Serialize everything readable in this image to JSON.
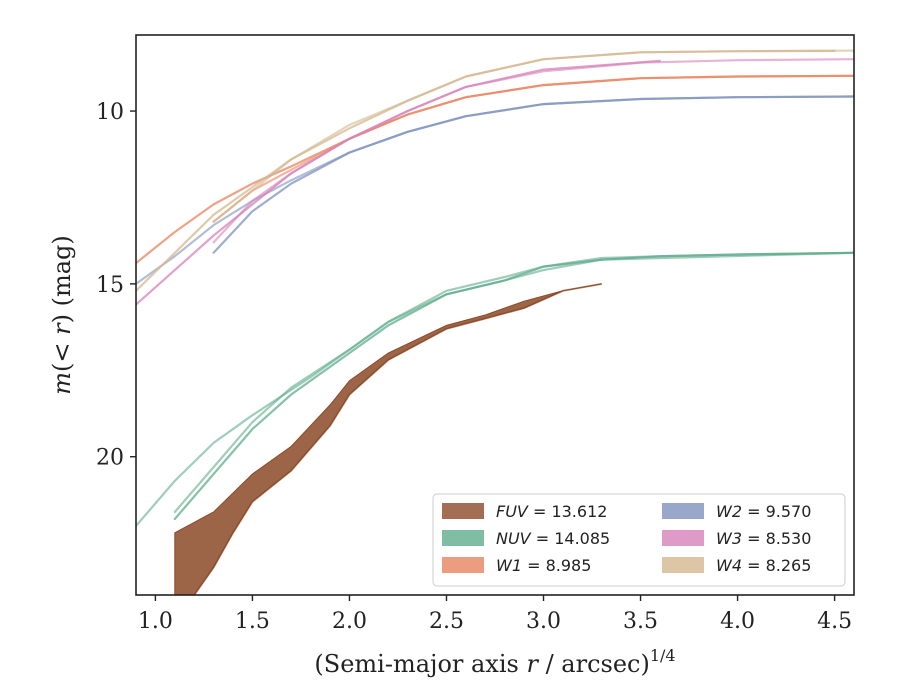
{
  "chart_data": {
    "type": "line",
    "xlabel_prefix": "(Semi-major axis ",
    "xlabel_var": "r",
    "xlabel_suffix": " / arcsec)",
    "xlabel_exp": "1/4",
    "ylabel_var_m": "m",
    "ylabel_mid": "(< ",
    "ylabel_var_r": "r",
    "ylabel_suffix": ") (mag)",
    "xlim": [
      0.9,
      4.6
    ],
    "ylim": [
      24.0,
      7.8
    ],
    "y_inverted": true,
    "xticks": [
      "1.0",
      "1.5",
      "2.0",
      "2.5",
      "3.0",
      "3.5",
      "4.0",
      "4.5"
    ],
    "xtick_values": [
      1.0,
      1.5,
      2.0,
      2.5,
      3.0,
      3.5,
      4.0,
      4.5
    ],
    "yticks": [
      "10",
      "15",
      "20"
    ],
    "ytick_values": [
      10,
      15,
      20
    ],
    "grid": false,
    "legend_position": "lower-right",
    "series": [
      {
        "name": "FUV",
        "label_value": "13.612",
        "color": "#8c4a28",
        "band": true,
        "lower": [
          [
            1.1,
            22.2
          ],
          [
            1.3,
            21.6
          ],
          [
            1.5,
            20.5
          ],
          [
            1.7,
            19.7
          ],
          [
            1.9,
            18.5
          ],
          [
            2.0,
            17.8
          ],
          [
            2.2,
            17.0
          ],
          [
            2.5,
            16.2
          ],
          [
            2.7,
            15.9
          ],
          [
            2.9,
            15.5
          ],
          [
            3.1,
            15.2
          ],
          [
            3.3,
            15.0
          ]
        ],
        "upper": [
          [
            1.1,
            24.0
          ],
          [
            1.2,
            24.0
          ],
          [
            1.3,
            23.2
          ],
          [
            1.4,
            22.2
          ],
          [
            1.5,
            21.3
          ],
          [
            1.7,
            20.4
          ],
          [
            1.9,
            19.1
          ],
          [
            2.0,
            18.2
          ],
          [
            2.2,
            17.2
          ],
          [
            2.5,
            16.3
          ],
          [
            2.7,
            16.0
          ],
          [
            2.9,
            15.7
          ],
          [
            3.1,
            15.2
          ],
          [
            3.3,
            15.0
          ]
        ]
      },
      {
        "name": "NUV",
        "label_value": "14.085",
        "color": "#5fac8e",
        "band": false,
        "lines": [
          [
            [
              1.1,
              21.8
            ],
            [
              1.3,
              20.5
            ],
            [
              1.5,
              19.2
            ],
            [
              1.7,
              18.2
            ],
            [
              2.0,
              17.0
            ],
            [
              2.2,
              16.2
            ],
            [
              2.5,
              15.3
            ],
            [
              2.8,
              14.9
            ],
            [
              3.0,
              14.5
            ],
            [
              3.3,
              14.3
            ],
            [
              3.6,
              14.2
            ],
            [
              4.0,
              14.15
            ],
            [
              4.6,
              14.1
            ]
          ],
          [
            [
              1.1,
              21.6
            ],
            [
              1.3,
              20.3
            ],
            [
              1.5,
              19.0
            ],
            [
              1.7,
              18.0
            ],
            [
              2.0,
              16.9
            ],
            [
              2.2,
              16.1
            ],
            [
              2.5,
              15.2
            ],
            [
              2.8,
              14.8
            ],
            [
              3.0,
              14.5
            ],
            [
              3.3,
              14.25
            ],
            [
              3.6,
              14.2
            ],
            [
              4.0,
              14.15
            ],
            [
              4.6,
              14.1
            ]
          ],
          [
            [
              0.9,
              22.0
            ],
            [
              1.1,
              20.7
            ],
            [
              1.3,
              19.6
            ],
            [
              1.5,
              18.8
            ],
            [
              1.8,
              17.7
            ],
            [
              2.0,
              16.9
            ],
            [
              2.2,
              16.1
            ],
            [
              2.5,
              15.3
            ],
            [
              2.8,
              14.9
            ],
            [
              3.0,
              14.6
            ],
            [
              3.3,
              14.3
            ],
            [
              4.6,
              14.1
            ]
          ]
        ]
      },
      {
        "name": "W1",
        "label_value": "8.985",
        "color": "#e8845f",
        "band": false,
        "lines": [
          [
            [
              0.9,
              14.4
            ],
            [
              1.1,
              13.5
            ],
            [
              1.3,
              12.7
            ],
            [
              1.5,
              12.1
            ],
            [
              1.7,
              11.6
            ],
            [
              2.0,
              10.8
            ],
            [
              2.3,
              10.1
            ],
            [
              2.6,
              9.6
            ],
            [
              3.0,
              9.25
            ],
            [
              3.5,
              9.05
            ],
            [
              4.0,
              9.0
            ],
            [
              4.6,
              8.98
            ]
          ],
          [
            [
              1.3,
              13.2
            ],
            [
              1.5,
              12.3
            ],
            [
              1.7,
              11.7
            ],
            [
              2.0,
              10.8
            ],
            [
              2.3,
              10.1
            ],
            [
              2.6,
              9.6
            ],
            [
              3.0,
              9.25
            ],
            [
              3.5,
              9.05
            ],
            [
              4.0,
              9.0
            ],
            [
              4.6,
              8.98
            ]
          ]
        ]
      },
      {
        "name": "W2",
        "label_value": "9.570",
        "color": "#7f92bd",
        "band": false,
        "lines": [
          [
            [
              1.3,
              14.1
            ],
            [
              1.5,
              12.9
            ],
            [
              1.7,
              12.1
            ],
            [
              2.0,
              11.2
            ],
            [
              2.3,
              10.6
            ],
            [
              2.6,
              10.15
            ],
            [
              3.0,
              9.8
            ],
            [
              3.5,
              9.65
            ],
            [
              4.0,
              9.6
            ],
            [
              4.6,
              9.58
            ]
          ],
          [
            [
              0.9,
              15.0
            ],
            [
              1.1,
              14.2
            ],
            [
              1.3,
              13.3
            ],
            [
              1.5,
              12.6
            ],
            [
              1.7,
              12.0
            ],
            [
              2.0,
              11.2
            ],
            [
              2.3,
              10.6
            ],
            [
              2.6,
              10.15
            ],
            [
              3.0,
              9.8
            ],
            [
              3.5,
              9.65
            ],
            [
              4.0,
              9.6
            ],
            [
              4.6,
              9.58
            ]
          ]
        ]
      },
      {
        "name": "W3",
        "label_value": "8.530",
        "color": "#d782b9",
        "band": false,
        "lines": [
          [
            [
              0.9,
              15.6
            ],
            [
              1.1,
              14.6
            ],
            [
              1.3,
              13.6
            ],
            [
              1.5,
              12.7
            ],
            [
              1.7,
              11.8
            ],
            [
              2.0,
              10.8
            ],
            [
              2.3,
              10.0
            ],
            [
              2.6,
              9.3
            ],
            [
              3.0,
              8.8
            ],
            [
              3.6,
              8.55
            ]
          ],
          [
            [
              1.3,
              13.8
            ],
            [
              1.5,
              12.6
            ],
            [
              1.7,
              11.8
            ],
            [
              2.0,
              10.8
            ],
            [
              2.3,
              10.0
            ],
            [
              2.6,
              9.3
            ],
            [
              3.0,
              8.85
            ],
            [
              3.5,
              8.6
            ],
            [
              4.0,
              8.53
            ],
            [
              4.6,
              8.5
            ]
          ]
        ]
      },
      {
        "name": "W4",
        "label_value": "8.265",
        "color": "#d4b890",
        "band": false,
        "lines": [
          [
            [
              0.9,
              15.2
            ],
            [
              1.1,
              14.1
            ],
            [
              1.3,
              13.0
            ],
            [
              1.5,
              12.2
            ],
            [
              1.7,
              11.4
            ],
            [
              2.0,
              10.5
            ],
            [
              2.3,
              9.7
            ],
            [
              2.6,
              9.0
            ],
            [
              3.0,
              8.5
            ],
            [
              3.5,
              8.3
            ],
            [
              4.0,
              8.27
            ],
            [
              4.5,
              8.26
            ]
          ],
          [
            [
              1.3,
              13.2
            ],
            [
              1.5,
              12.3
            ],
            [
              1.7,
              11.4
            ],
            [
              2.0,
              10.4
            ],
            [
              2.3,
              9.7
            ],
            [
              2.6,
              9.0
            ],
            [
              3.0,
              8.5
            ],
            [
              3.5,
              8.3
            ],
            [
              4.0,
              8.27
            ],
            [
              4.6,
              8.25
            ]
          ]
        ]
      }
    ]
  }
}
